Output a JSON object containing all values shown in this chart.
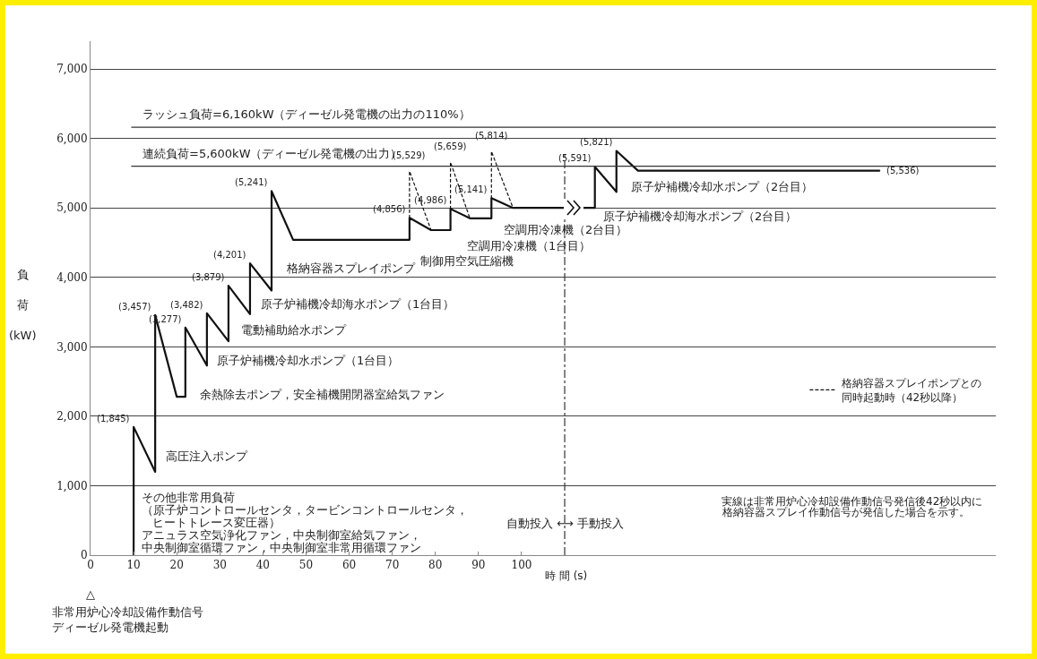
{
  "chart_data": {
    "type": "line",
    "xlabel": "時 間 (s)",
    "ylabel": "負荷 (kW)",
    "xlim": [
      0,
      210
    ],
    "xticks": [
      0,
      10,
      20,
      30,
      40,
      50,
      60,
      70,
      80,
      90,
      100
    ],
    "ylim": [
      0,
      7400
    ],
    "yticks": [
      0,
      {
        "value": 1000,
        "label": "1,000"
      },
      {
        "value": 2000,
        "label": "2,000"
      },
      {
        "value": 3000,
        "label": "3,000"
      },
      {
        "value": 4000,
        "label": "4,000"
      },
      {
        "value": 5000,
        "label": "5,000"
      },
      {
        "value": 6000,
        "label": "6,000"
      },
      {
        "value": 7000,
        "label": "7,000"
      }
    ],
    "grid": "y",
    "legend": "right",
    "series": [
      {
        "color": "#111111",
        "line_style": "solid",
        "x": [
          10,
          10,
          15,
          15,
          20,
          22,
          22,
          27,
          27,
          32,
          32,
          37,
          37,
          42,
          42,
          47,
          74,
          74,
          79,
          83.5,
          83.5,
          88,
          93,
          93,
          98,
          117,
          117,
          122,
          122,
          127,
          183
        ],
        "values": [
          0,
          1845,
          1200,
          3457,
          2280,
          2280,
          3277,
          2730,
          3482,
          3080,
          3879,
          3470,
          4201,
          3810,
          5241,
          4540,
          4540,
          4856,
          4680,
          4680,
          4986,
          4850,
          4850,
          5141,
          5000,
          5000,
          5591,
          5230,
          5821,
          5536,
          5536
        ],
        "value_labels": [
          null,
          "(1,845)",
          null,
          "(3,457)",
          null,
          null,
          "(3,277)",
          null,
          "(3,482)",
          null,
          "(3,879)",
          null,
          "(4,201)",
          null,
          "(5,241)",
          null,
          null,
          "(4,856)",
          null,
          null,
          "(4,986)",
          null,
          null,
          "(5,141)",
          null,
          null,
          "(5,591)",
          null,
          "(5,821)",
          null,
          "(5,536)"
        ]
      },
      {
        "name": "格納容器スプレイポンプとの同時起動時（42秒以降）",
        "color": "#111111",
        "line_style": "dotted",
        "x": [
          74,
          74,
          79,
          80,
          83.5,
          83.5,
          88,
          90,
          93,
          93,
          98
        ],
        "values": [
          4856,
          5529,
          4680,
          null,
          4986,
          5659,
          4850,
          null,
          5141,
          5814,
          5000
        ],
        "value_labels": [
          null,
          "(5,529)",
          null,
          null,
          null,
          "(5,659)",
          null,
          null,
          null,
          "(5,814)",
          null
        ]
      }
    ],
    "ref_lines": [
      {
        "axis": "y",
        "value": 6160,
        "label": "ラッシュ負荷=6,160kW（ディーゼル発電機の出力の110%）",
        "color": "#333333",
        "line_style": "solid"
      },
      {
        "axis": "y",
        "value": 5600,
        "label": "連続負荷=5,600kW（ディーゼル発電機の出力）",
        "color": "#333333",
        "line_style": "solid"
      },
      {
        "axis": "x",
        "value": 110,
        "color": "#333333",
        "line_style": "dashed"
      }
    ],
    "annotations": [
      "高圧注入ポンプ",
      "余熱除去ポンプ，安全補機開閉器室給気ファン",
      "原子炉補機冷却水ポンプ（1台目）",
      "電動補助給水ポンプ",
      "原子炉補機冷却海水ポンプ（1台目）",
      "格納容器スプレイポンプ",
      "制御用空気圧縮機",
      "空調用冷凍機（1台目）",
      "空調用冷凍機（2台目）",
      "原子炉補機冷却海水ポンプ（2台目）",
      "原子炉補機冷却水ポンプ（2台目）",
      "その他非常用負荷",
      "（原子炉コントロールセンタ，タービンコントロールセンタ，",
      "ヒートトレース変圧器）",
      "アニュラス空気浄化ファン，中央制御室給気ファン，",
      "中央制御室循環ファン，中央制御室非常用循環ファン",
      "自動投入 ⟷ 手動投入",
      "実線は非常用炉心冷却設備作動信号発信後42秒以内に",
      "格納容器スプレイ作動信号が発信した場合を示す。",
      "△",
      "非常用炉心冷却設備作動信号",
      "ディーゼル発電機起動"
    ]
  }
}
